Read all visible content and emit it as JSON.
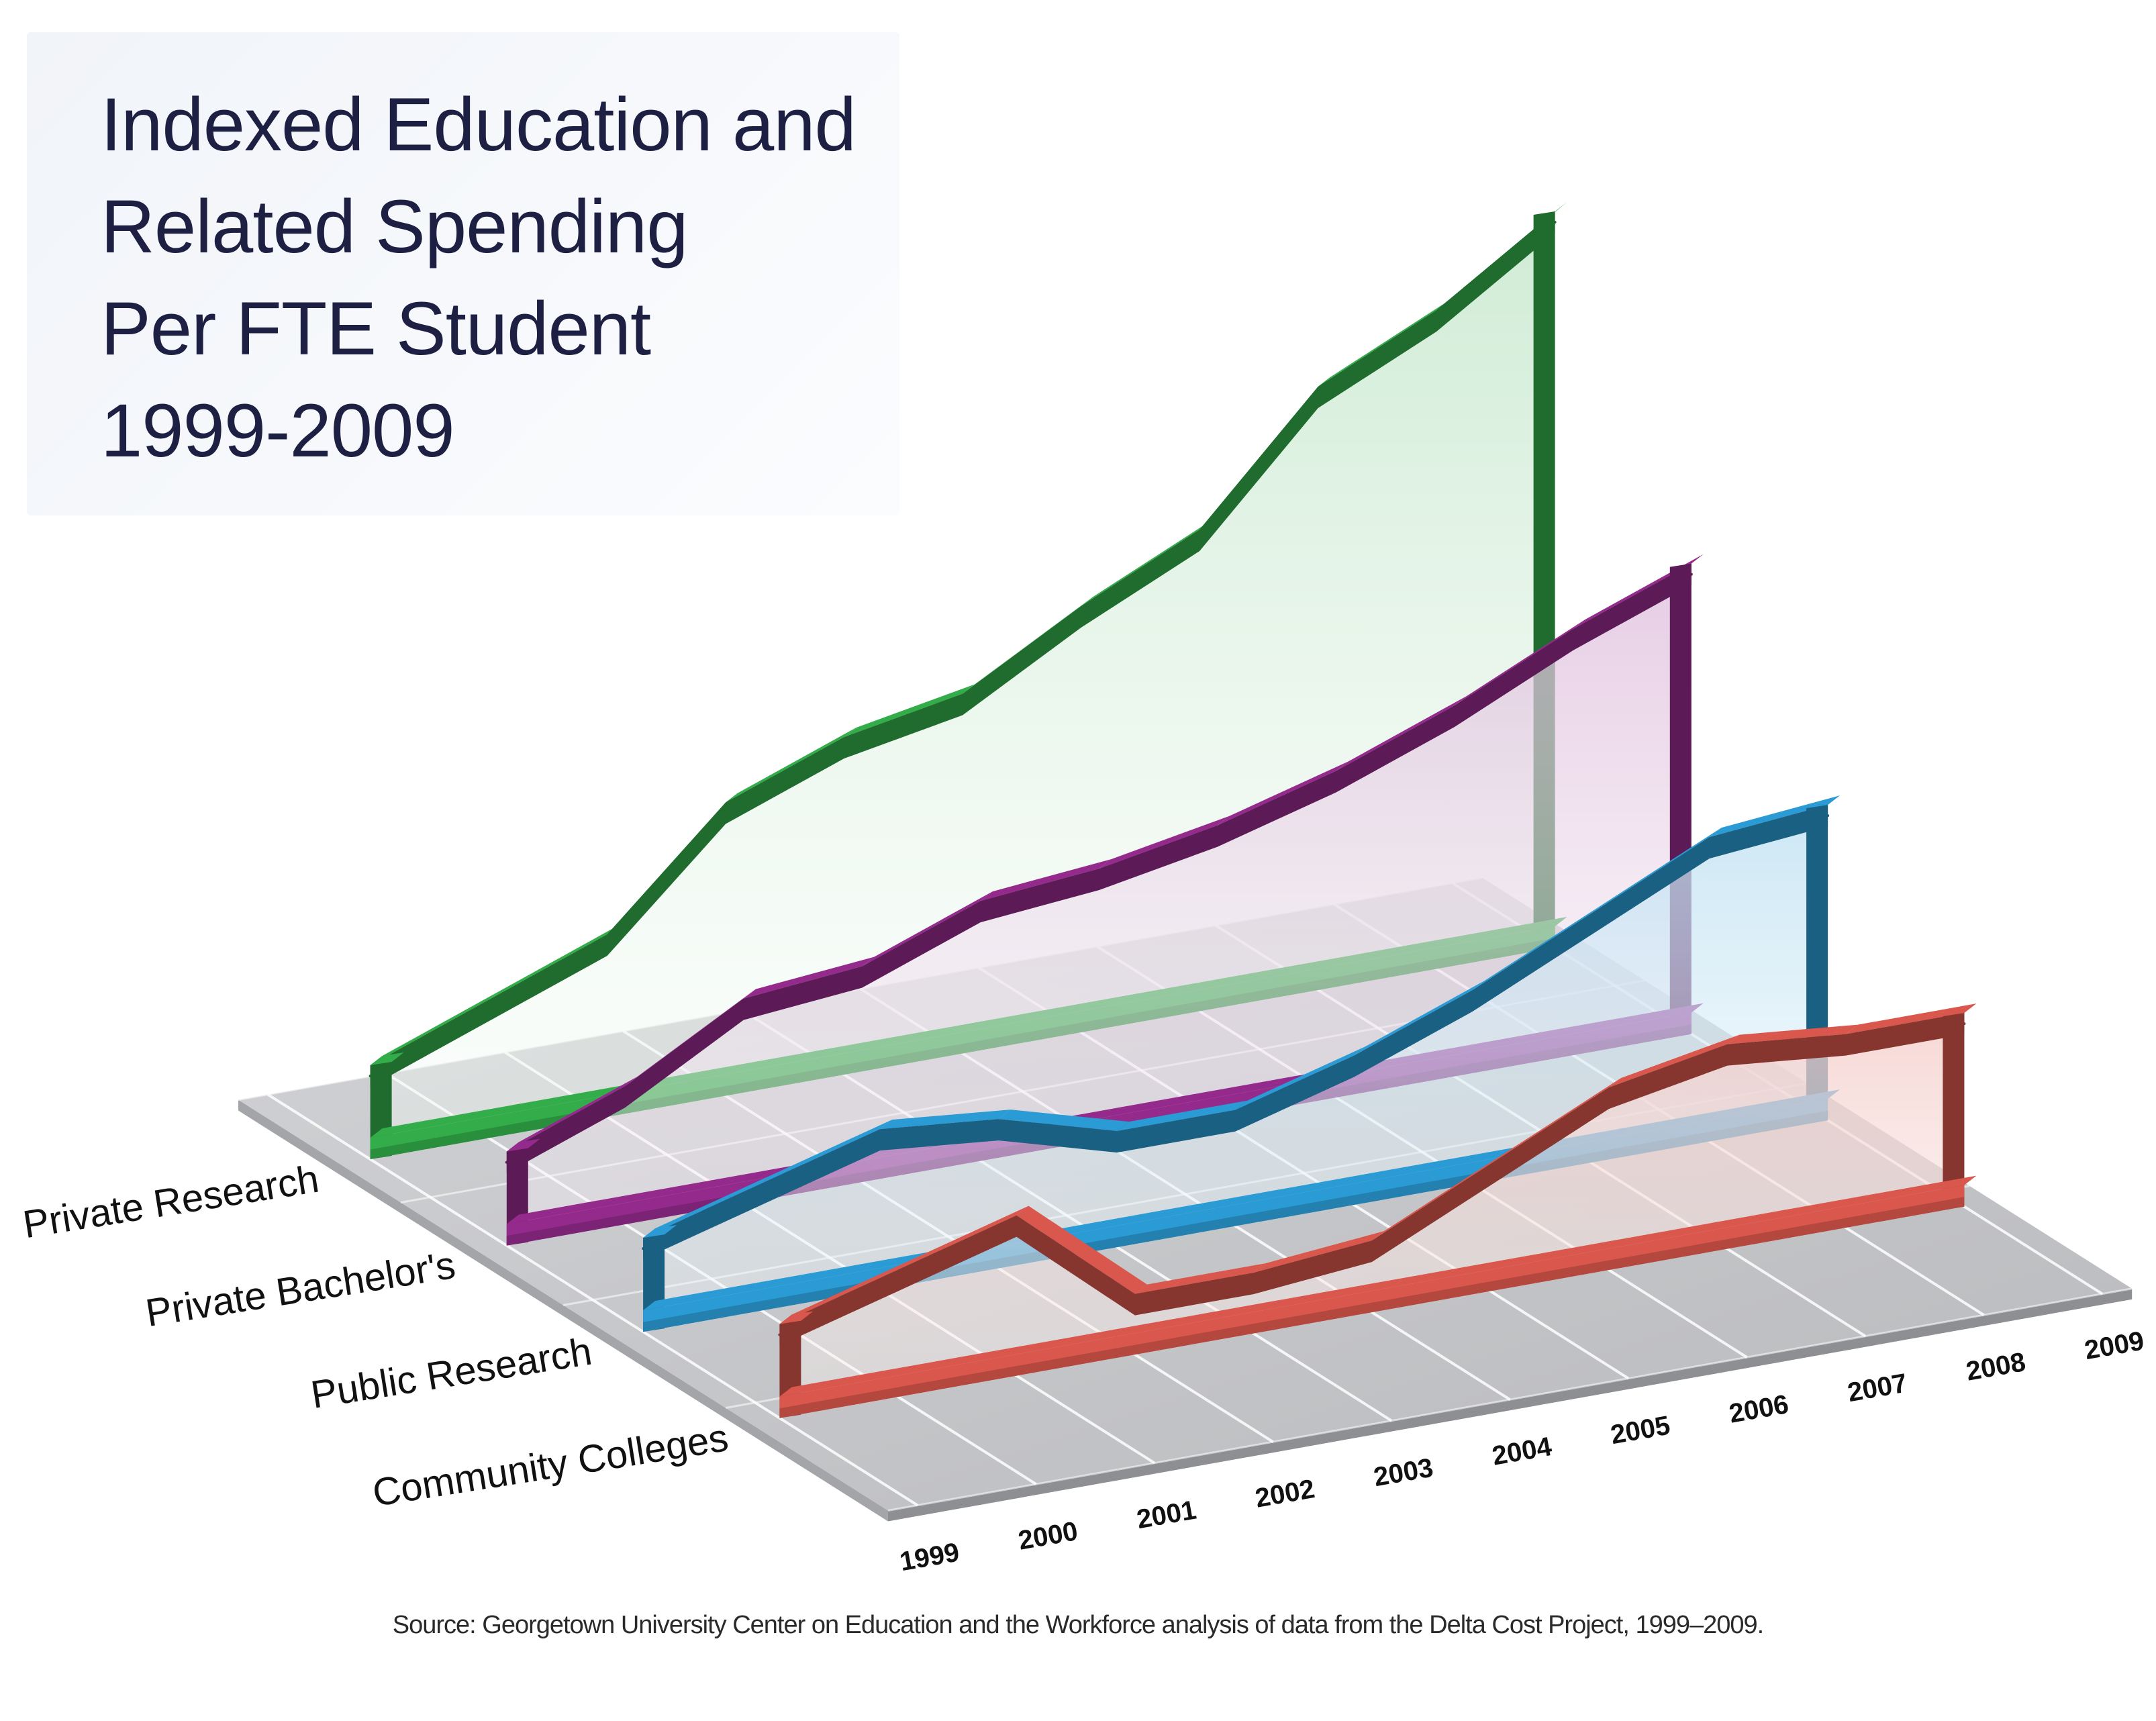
{
  "title_lines": [
    "Indexed Education and",
    "Related Spending",
    "Per FTE Student",
    "1999-2009"
  ],
  "source": "Source: Georgetown University Center on Education and the Workforce analysis of data from the Delta Cost Project, 1999–2009.",
  "chart_data": {
    "type": "area",
    "title": "Indexed Education and Related Spending Per FTE Student 1999-2009",
    "categories": [
      "1999",
      "2000",
      "2001",
      "2002",
      "2003",
      "2004",
      "2005",
      "2006",
      "2007",
      "2008",
      "2009"
    ],
    "series": [
      {
        "name": "Private Research",
        "color": "#33ad4a",
        "values": [
          100,
          104,
          108,
          118,
          122,
          124,
          130,
          135,
          146,
          151,
          158
        ]
      },
      {
        "name": "Private Bachelor's",
        "color": "#952a8d",
        "values": [
          100,
          104,
          110,
          111,
          115,
          116,
          118,
          121,
          125,
          130,
          134
        ]
      },
      {
        "name": "Public Research",
        "color": "#2a9bd4",
        "values": [
          100,
          103,
          106,
          105,
          102,
          102,
          105,
          109,
          114,
          119,
          120
        ]
      },
      {
        "name": "Community Colleges",
        "color": "#d9574c",
        "values": [
          100,
          103,
          106,
          97,
          97,
          98,
          103,
          108,
          110,
          109,
          109
        ]
      }
    ]
  }
}
